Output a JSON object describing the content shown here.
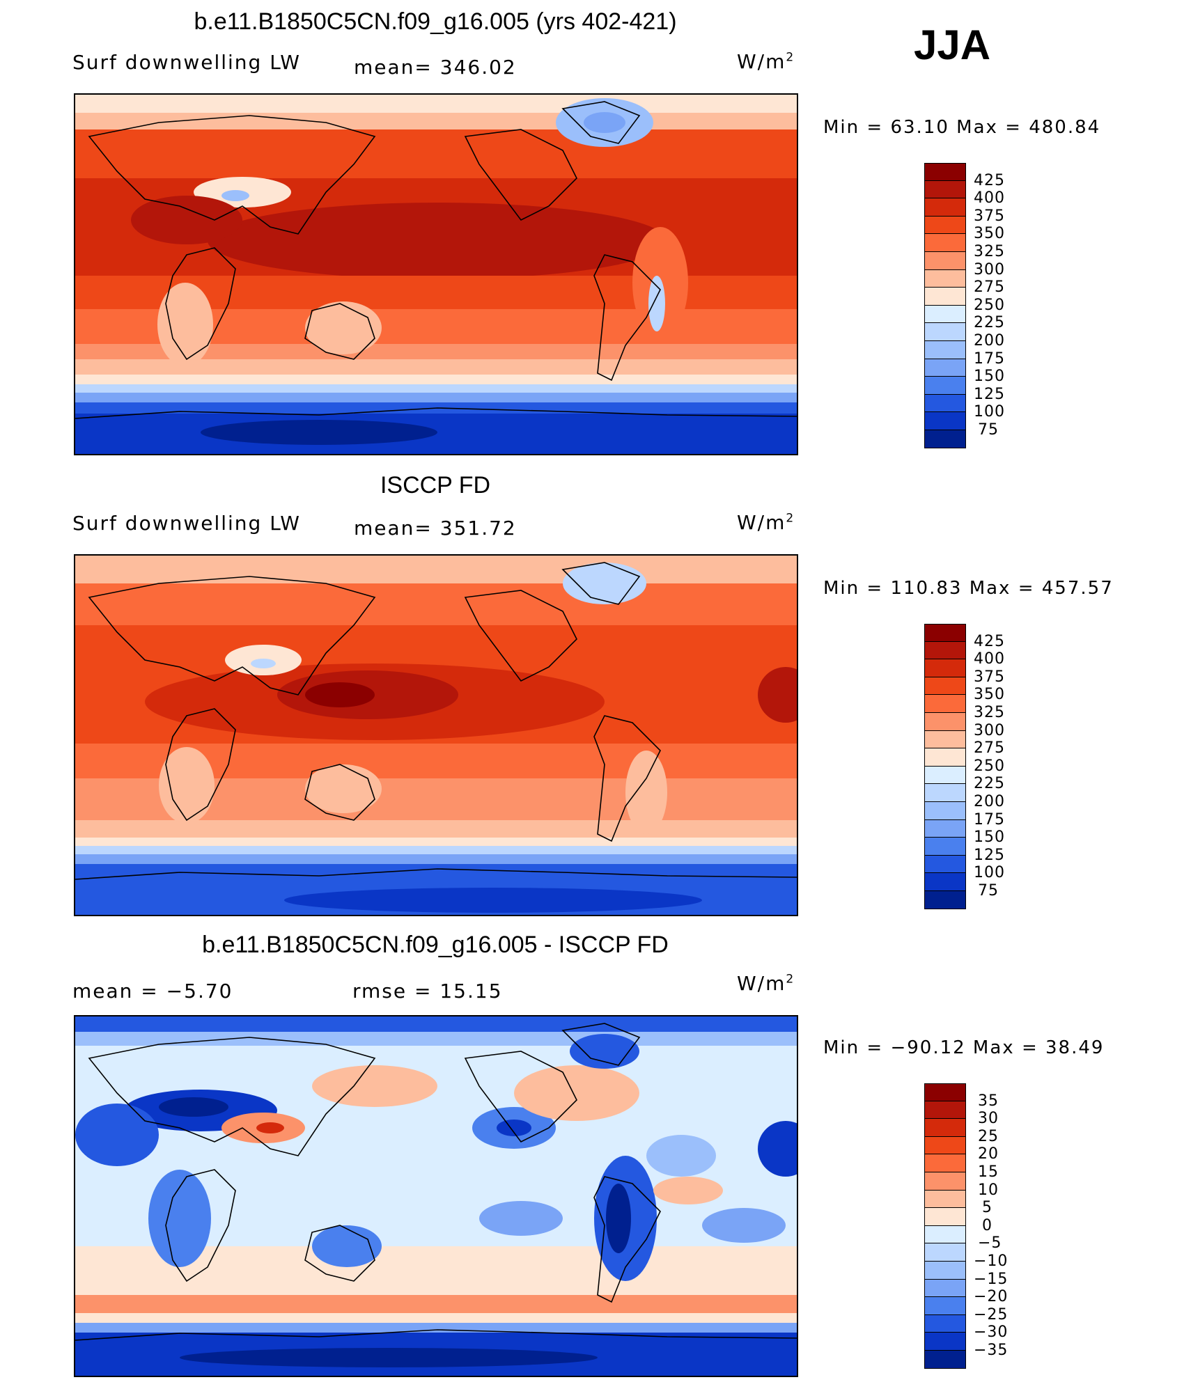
{
  "season": "JJA",
  "panels": [
    {
      "id": "model",
      "title": "b.e11.B1850C5CN.f09_g16.005 (yrs 402-421)",
      "left_label": "Surf downwelling LW",
      "center_label": "mean= 346.02",
      "units": "W/m",
      "units_exp": "2",
      "minmax": "Min =  63.10 Max = 480.84",
      "cbar_type": "absolute"
    },
    {
      "id": "obs",
      "title": "ISCCP FD",
      "left_label": "Surf downwelling LW",
      "center_label": "mean= 351.72",
      "units": "W/m",
      "units_exp": "2",
      "minmax": "Min = 110.83 Max = 457.57",
      "cbar_type": "absolute"
    },
    {
      "id": "diff",
      "title": "b.e11.B1850C5CN.f09_g16.005 - ISCCP FD",
      "left_label": "mean =   −5.70",
      "center_label": "rmse =   15.15",
      "units": "W/m",
      "units_exp": "2",
      "minmax": "Min = −90.12 Max =  38.49",
      "cbar_type": "difference"
    }
  ],
  "chart_data": [
    {
      "type": "heatmap",
      "title": "b.e11.B1850C5CN.f09_g16.005 (yrs 402-421)",
      "variable": "Surf downwelling LW",
      "mean": 346.02,
      "min": 63.1,
      "max": 480.84,
      "units": "W/m2",
      "levels": [
        425,
        400,
        375,
        350,
        325,
        300,
        275,
        250,
        225,
        200,
        175,
        150,
        125,
        100,
        75
      ],
      "level_labels": [
        "425",
        "400",
        "375",
        "350",
        "325",
        "300",
        "275",
        "250",
        "225",
        "200",
        "175",
        "150",
        "125",
        "100",
        "75"
      ],
      "colors": [
        "#8b0000",
        "#b3160a",
        "#d42a0b",
        "#ee4818",
        "#fb6a3a",
        "#fc926a",
        "#fdbd9d",
        "#fee6d4",
        "#dbeeff",
        "#bcd7fe",
        "#9bbffb",
        "#7aa4f6",
        "#4a80ee",
        "#2458e0",
        "#0a36c6",
        "#00208f"
      ]
    },
    {
      "type": "heatmap",
      "title": "ISCCP FD",
      "variable": "Surf downwelling LW",
      "mean": 351.72,
      "min": 110.83,
      "max": 457.57,
      "units": "W/m2",
      "levels": [
        425,
        400,
        375,
        350,
        325,
        300,
        275,
        250,
        225,
        200,
        175,
        150,
        125,
        100,
        75
      ],
      "level_labels": [
        "425",
        "400",
        "375",
        "350",
        "325",
        "300",
        "275",
        "250",
        "225",
        "200",
        "175",
        "150",
        "125",
        "100",
        "75"
      ],
      "colors": [
        "#8b0000",
        "#b3160a",
        "#d42a0b",
        "#ee4818",
        "#fb6a3a",
        "#fc926a",
        "#fdbd9d",
        "#fee6d4",
        "#dbeeff",
        "#bcd7fe",
        "#9bbffb",
        "#7aa4f6",
        "#4a80ee",
        "#2458e0",
        "#0a36c6",
        "#00208f"
      ]
    },
    {
      "type": "heatmap",
      "title": "b.e11.B1850C5CN.f09_g16.005 - ISCCP FD",
      "variable": "difference",
      "mean": -5.7,
      "rmse": 15.15,
      "min": -90.12,
      "max": 38.49,
      "units": "W/m2",
      "levels": [
        35,
        30,
        25,
        20,
        15,
        10,
        5,
        0,
        -5,
        -10,
        -15,
        -20,
        -25,
        -30,
        -35
      ],
      "level_labels": [
        "35",
        "30",
        "25",
        "20",
        "15",
        "10",
        "5",
        "0",
        "−5",
        "−10",
        "−15",
        "−20",
        "−25",
        "−30",
        "−35"
      ],
      "colors": [
        "#8b0000",
        "#b3160a",
        "#d42a0b",
        "#ee4818",
        "#fb6a3a",
        "#fc926a",
        "#fdbd9d",
        "#fee6d4",
        "#dbeeff",
        "#bcd7fe",
        "#9bbffb",
        "#7aa4f6",
        "#4a80ee",
        "#2458e0",
        "#0a36c6",
        "#00208f"
      ]
    }
  ]
}
